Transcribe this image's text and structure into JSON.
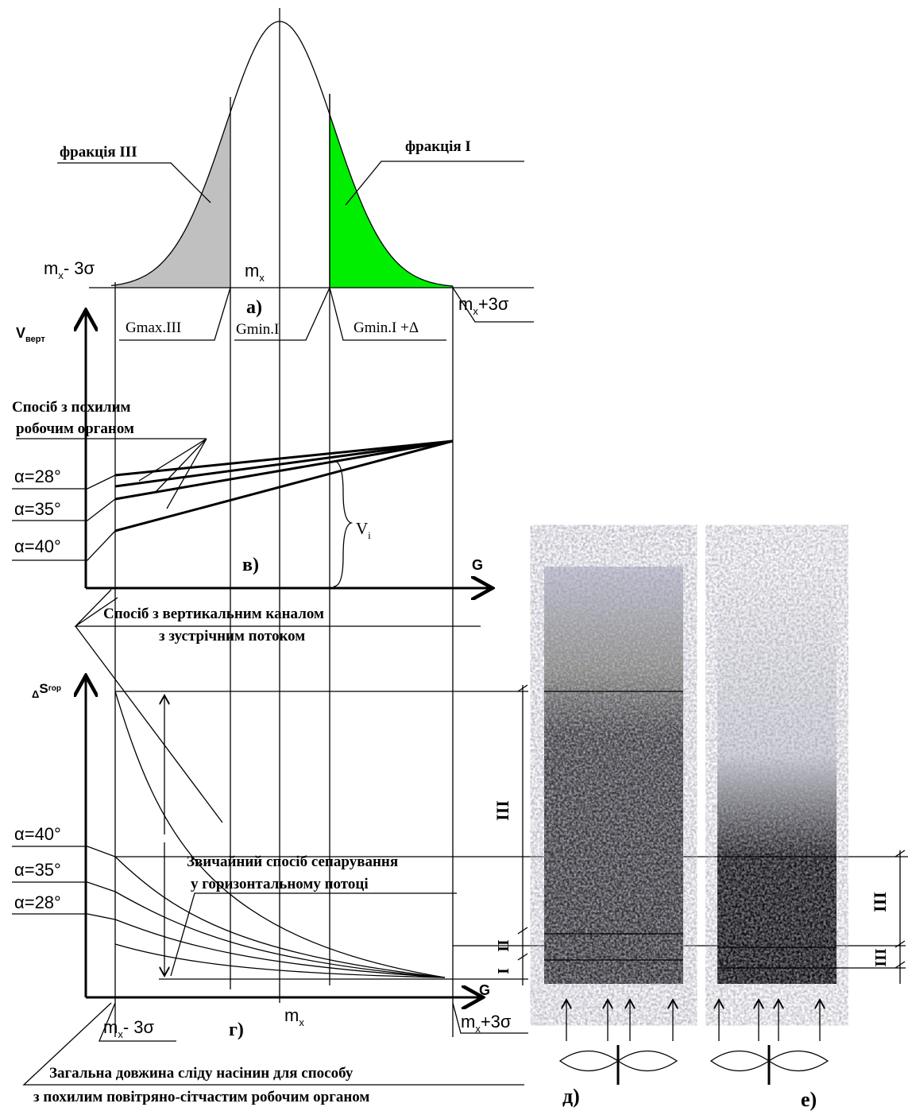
{
  "labels": {
    "fraction_3": "фракція III",
    "fraction_1": "фракція I",
    "top_left": {
      "base": "m",
      "sub": "x",
      "rest": "- 3σ"
    },
    "top_center": {
      "base": "m",
      "sub": "x"
    },
    "top_right": {
      "base": "m",
      "sub": "x",
      "rest": "+3σ"
    },
    "panel_a": "а)",
    "g_max_3": "Gmax.III",
    "g_min_1": "Gmin.I",
    "g_min_1_delta": "Gmin.I +Δ",
    "v_axis": {
      "base": "V",
      "sub": "верт"
    },
    "inclined_method": [
      "Спосіб з похилим",
      "робочим органом"
    ],
    "alpha_top": [
      "α=28°",
      "α=35°",
      "α=40°"
    ],
    "v_i": {
      "base": "V",
      "sub": "i"
    },
    "panel_b": "в)",
    "g_axis_mid": "G",
    "vertical_method": [
      "Спосіб з вертикальним каналом",
      "з зустрічним потоком"
    ],
    "s_axis": {
      "pre": "Δ",
      "base": "S",
      "sub": "гор"
    },
    "alpha_bottom": [
      "α=40°",
      "α=35°",
      "α=28°"
    ],
    "usual_method": [
      "Звичайний спосіб сепарування",
      "у горизонтальному потоці"
    ],
    "zones_d": [
      "III",
      "II",
      "I"
    ],
    "zones_e": [
      "III",
      "III"
    ],
    "g_axis_bottom": "G",
    "panel_g": "г)",
    "bottom_center": {
      "base": "m",
      "sub": "x"
    },
    "bottom_left": {
      "base": "m",
      "sub": "x",
      "rest": "- 3σ"
    },
    "bottom_right": {
      "base": "m",
      "sub": "x",
      "rest": "+3σ"
    },
    "total_length": [
      "Загальна довжина сліду насінин для способу",
      "з похилим повітряно-сітчастим робочим органом"
    ],
    "panel_d": "д)",
    "panel_e": "е)"
  }
}
